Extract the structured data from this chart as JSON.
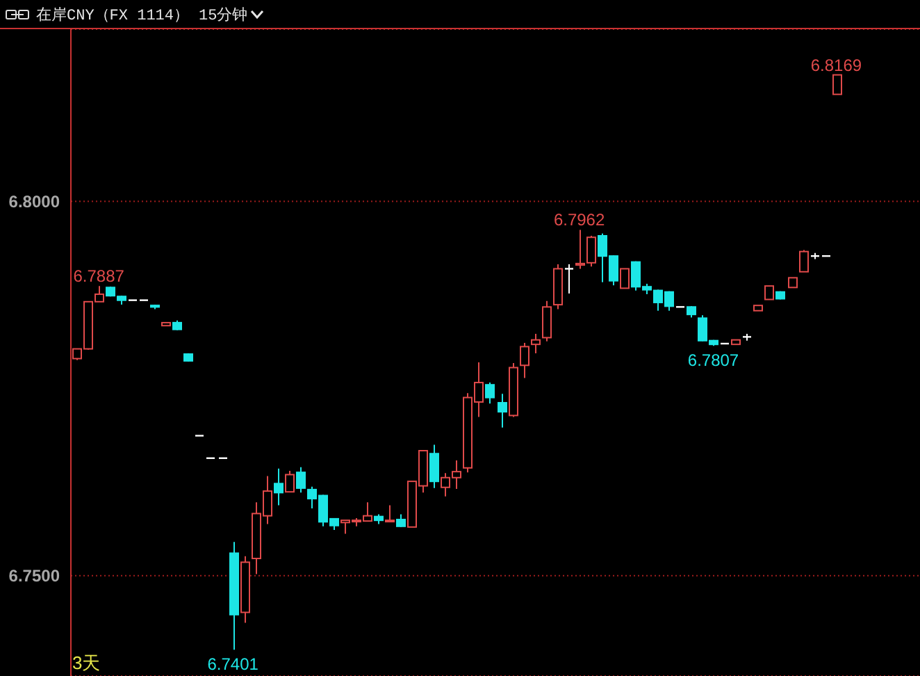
{
  "chart_data": {
    "type": "candlestick",
    "title": "在岸CNY（FX 1114）",
    "subtitle": "15分钟",
    "categories": [
      null,
      null,
      null,
      null,
      null,
      null,
      null,
      null,
      null,
      null,
      null,
      null,
      null,
      null,
      null,
      null,
      null,
      null,
      null,
      null,
      null,
      null,
      null,
      null,
      null,
      null,
      null,
      null,
      null,
      null,
      null,
      null,
      null,
      null,
      null,
      null,
      null,
      null,
      null,
      null,
      null,
      null,
      null,
      null,
      null,
      null,
      null,
      null,
      null,
      null,
      null,
      null,
      null,
      null,
      null,
      null,
      null,
      null,
      null,
      null,
      null,
      null,
      null,
      null,
      null,
      null,
      null,
      null,
      null,
      null,
      null,
      null,
      null,
      null,
      null,
      null
    ],
    "ohlc": [
      [
        6.779,
        6.7803,
        6.7788,
        6.7803
      ],
      [
        6.7803,
        6.7866,
        6.7802,
        6.7866
      ],
      [
        6.7866,
        6.7887,
        6.7866,
        6.7876
      ],
      [
        6.7886,
        6.7886,
        6.7873,
        6.7873
      ],
      [
        6.7874,
        6.7874,
        6.7862,
        6.7867
      ],
      [
        6.7868,
        6.7868,
        6.7868,
        6.7868
      ],
      [
        6.7868,
        6.7868,
        6.7868,
        6.7868
      ],
      [
        6.7862,
        6.7862,
        6.7856,
        6.7858
      ],
      [
        6.7834,
        6.7838,
        6.7834,
        6.7838
      ],
      [
        6.7839,
        6.7841,
        6.7828,
        6.7828
      ],
      [
        6.7797,
        6.7797,
        6.7786,
        6.7786
      ],
      [
        6.7687,
        6.7687,
        6.7687,
        6.7687
      ],
      [
        6.7657,
        6.7657,
        6.7657,
        6.7657
      ],
      [
        6.7657,
        6.7657,
        6.7657,
        6.7657
      ],
      [
        6.7531,
        6.7545,
        6.7401,
        6.7447
      ],
      [
        6.7451,
        6.7526,
        6.7437,
        6.7518
      ],
      [
        6.7523,
        6.7598,
        6.7502,
        6.7583
      ],
      [
        6.758,
        6.7633,
        6.7569,
        6.7613
      ],
      [
        6.7624,
        6.7643,
        6.7594,
        6.761
      ],
      [
        6.7612,
        6.764,
        6.7612,
        6.7635
      ],
      [
        6.7639,
        6.7645,
        6.7611,
        6.7616
      ],
      [
        6.7616,
        6.7619,
        6.759,
        6.7602
      ],
      [
        6.7608,
        6.7608,
        6.7566,
        6.7571
      ],
      [
        6.7577,
        6.7577,
        6.7561,
        6.7566
      ],
      [
        6.7571,
        6.7574,
        6.7556,
        6.7574
      ],
      [
        6.7573,
        6.7577,
        6.7566,
        6.7574
      ],
      [
        6.7573,
        6.7598,
        6.7573,
        6.758
      ],
      [
        6.758,
        6.7582,
        6.7569,
        6.7573
      ],
      [
        6.7573,
        6.7594,
        6.7573,
        6.7574
      ],
      [
        6.7576,
        6.7582,
        6.7565,
        6.7565
      ],
      [
        6.7565,
        6.7626,
        6.7565,
        6.7626
      ],
      [
        6.762,
        6.7667,
        6.7611,
        6.7667
      ],
      [
        6.7664,
        6.7675,
        6.7617,
        6.7625
      ],
      [
        6.7618,
        6.7637,
        6.7606,
        6.7631
      ],
      [
        6.7631,
        6.7654,
        6.7616,
        6.7639
      ],
      [
        6.7644,
        6.7744,
        6.7638,
        6.7738
      ],
      [
        6.7732,
        6.7785,
        6.7712,
        6.7758
      ],
      [
        6.7756,
        6.7758,
        6.773,
        6.7737
      ],
      [
        6.7732,
        6.7743,
        6.7698,
        6.7718
      ],
      [
        6.7714,
        6.7784,
        6.7712,
        6.7778
      ],
      [
        6.7781,
        6.7811,
        6.7764,
        6.7806
      ],
      [
        6.7809,
        6.7823,
        6.7797,
        6.7815
      ],
      [
        6.7818,
        6.7867,
        6.7813,
        6.7859
      ],
      [
        6.7862,
        6.7916,
        6.7856,
        6.791
      ],
      [
        6.791,
        6.7916,
        6.7877,
        6.791
      ],
      [
        6.7915,
        6.7962,
        6.791,
        6.7917
      ],
      [
        6.7918,
        6.7954,
        6.7913,
        6.7952
      ],
      [
        6.7955,
        6.7957,
        6.7892,
        6.7926
      ],
      [
        6.7928,
        6.7928,
        6.7888,
        6.7893
      ],
      [
        6.7884,
        6.791,
        6.7884,
        6.791
      ],
      [
        6.792,
        6.792,
        6.7881,
        6.7885
      ],
      [
        6.7887,
        6.789,
        6.7876,
        6.7881
      ],
      [
        6.7882,
        6.7882,
        6.7854,
        6.7864
      ],
      [
        6.788,
        6.788,
        6.7854,
        6.7859
      ],
      [
        6.7859,
        6.7859,
        6.7859,
        6.7859
      ],
      [
        6.786,
        6.786,
        6.7845,
        6.7848
      ],
      [
        6.7845,
        6.7848,
        6.7813,
        6.7813
      ],
      [
        6.7815,
        6.7815,
        6.7807,
        6.7808
      ],
      [
        6.781,
        6.781,
        6.781,
        6.781
      ],
      [
        6.7809,
        6.7815,
        6.7809,
        6.7815
      ],
      [
        6.7819,
        6.7823,
        6.7814,
        6.7819
      ],
      [
        6.7854,
        6.7861,
        6.7854,
        6.7861
      ],
      [
        6.7869,
        6.7887,
        6.7869,
        6.7887
      ],
      [
        6.788,
        6.788,
        6.7869,
        6.7869
      ],
      [
        6.7885,
        6.7898,
        6.7885,
        6.7898
      ],
      [
        6.7906,
        6.7935,
        6.7906,
        6.7933
      ],
      [
        6.7927,
        6.7931,
        6.7923,
        6.7927
      ],
      [
        6.7927,
        6.7927,
        6.7927,
        6.7927
      ],
      [
        6.8143,
        6.8169,
        6.8143,
        6.8169
      ],
      null,
      null,
      null,
      null,
      null,
      null,
      null
    ],
    "colors": [
      "#e04a4a",
      "#e04a4a",
      "#e04a4a",
      "#1de6e6",
      "#1de6e6",
      "#ffffff",
      "#ffffff",
      "#1de6e6",
      "#e04a4a",
      "#1de6e6",
      "#1de6e6",
      "#ffffff",
      "#ffffff",
      "#ffffff",
      "#1de6e6",
      "#e04a4a",
      "#e04a4a",
      "#e04a4a",
      "#1de6e6",
      "#e04a4a",
      "#1de6e6",
      "#1de6e6",
      "#1de6e6",
      "#1de6e6",
      "#e04a4a",
      "#e04a4a",
      "#e04a4a",
      "#1de6e6",
      "#e04a4a",
      "#1de6e6",
      "#e04a4a",
      "#e04a4a",
      "#1de6e6",
      "#e04a4a",
      "#e04a4a",
      "#e04a4a",
      "#e04a4a",
      "#1de6e6",
      "#1de6e6",
      "#e04a4a",
      "#e04a4a",
      "#e04a4a",
      "#e04a4a",
      "#e04a4a",
      "#ffffff",
      "#e04a4a",
      "#e04a4a",
      "#1de6e6",
      "#1de6e6",
      "#e04a4a",
      "#1de6e6",
      "#1de6e6",
      "#1de6e6",
      "#1de6e6",
      "#ffffff",
      "#1de6e6",
      "#1de6e6",
      "#1de6e6",
      "#ffffff",
      "#e04a4a",
      "#ffffff",
      "#e04a4a",
      "#e04a4a",
      "#1de6e6",
      "#e04a4a",
      "#e04a4a",
      "#ffffff",
      "#ffffff",
      "#e04a4a",
      null,
      null,
      null,
      null,
      null,
      null,
      null
    ],
    "ylim": [
      6.7366,
      6.823
    ],
    "yticks": [
      {
        "value": 6.75,
        "label": "6.7500"
      },
      {
        "value": 6.8,
        "label": "6.8000"
      }
    ],
    "grid": "y",
    "tick_labels": "y",
    "annotations": [
      "3天",
      {
        "text": "6.7887",
        "y": 6.7887
      },
      {
        "text": "6.7962",
        "y": 6.7962
      },
      {
        "text": "6.8169",
        "y": 6.8169
      },
      {
        "text": "6.7401",
        "y": 6.7401
      },
      {
        "text": "6.7807",
        "y": 6.7807
      }
    ]
  }
}
